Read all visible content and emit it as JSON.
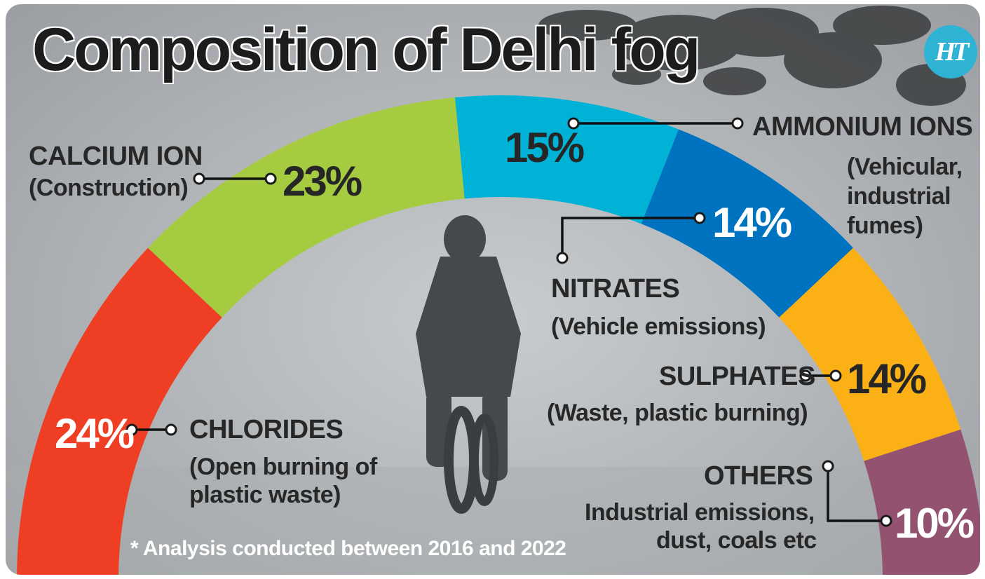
{
  "title": "Composition of Delhi fog",
  "logo": "HT",
  "footnote": "* Analysis conducted between 2016 and 2022",
  "chart_data": {
    "type": "pie",
    "style": "semicircle-donut",
    "unit": "%",
    "segments": [
      {
        "name": "CHLORIDES",
        "source": "(Open burning of plastic waste)",
        "value": 24,
        "label": "24%",
        "color": "#ee3f25"
      },
      {
        "name": "CALCIUM ION",
        "source": "(Construction)",
        "value": 23,
        "label": "23%",
        "color": "#a5cc40"
      },
      {
        "name": "AMMONIUM IONS",
        "source": "(Vehicular, industrial fumes)",
        "value": 15,
        "label": "15%",
        "color": "#00b2d6"
      },
      {
        "name": "NITRATES",
        "source": "(Vehicle emissions)",
        "value": 14,
        "label": "14%",
        "color": "#0073c0"
      },
      {
        "name": "SULPHATES",
        "source": "(Waste, plastic burning)",
        "value": 14,
        "label": "14%",
        "color": "#fbb116"
      },
      {
        "name": "OTHERS",
        "source": "Industrial emissions, dust, coals etc",
        "value": 10,
        "label": "10%",
        "color": "#935370"
      }
    ]
  },
  "text": {
    "chlorides_name": "CHLORIDES",
    "chlorides_desc": [
      "(Open burning of",
      "plastic waste)"
    ],
    "calcium_name": "CALCIUM ION",
    "calcium_desc": "(Construction)",
    "ammonium_name": "AMMONIUM IONS",
    "ammonium_desc": [
      "(Vehicular,",
      "industrial",
      "fumes)"
    ],
    "nitrates_name": "NITRATES",
    "nitrates_desc": "(Vehicle emissions)",
    "sulphates_name": "SULPHATES",
    "sulphates_desc": "(Waste, plastic burning)",
    "others_name": "OTHERS",
    "others_desc": [
      "Industrial emissions,",
      "dust, coals etc"
    ]
  }
}
